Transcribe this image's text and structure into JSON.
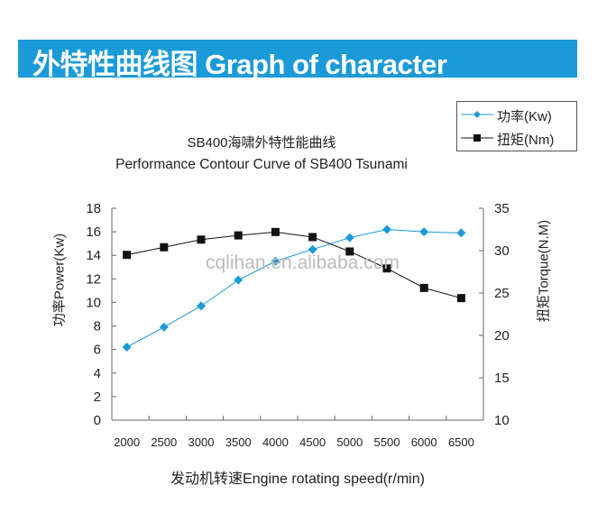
{
  "banner": {
    "title": "外特性曲线图 Graph of character",
    "color": "#1b9ad8"
  },
  "watermark": "cqlihan.en.alibaba.com",
  "chart_data": {
    "type": "line",
    "title": "SB400海啸外特性能曲线",
    "subtitle": "Performance Contour Curve of SB400 Tsunami",
    "xlabel": "发动机转速Engine rotating speed(r/min)",
    "ylabel": "功率Power(Kw)",
    "y2label": "扭矩Torque(N.M)",
    "categories": [
      "2000",
      "2500",
      "3000",
      "3500",
      "4000",
      "4500",
      "5000",
      "5500",
      "6000",
      "6500"
    ],
    "ylim": [
      0,
      18
    ],
    "yticks": [
      "0",
      "2",
      "4",
      "6",
      "8",
      "10",
      "12",
      "14",
      "16",
      "18"
    ],
    "y2lim": [
      10,
      35
    ],
    "y2ticks": [
      "10",
      "15",
      "20",
      "25",
      "30",
      "35"
    ],
    "legend_position": "top-right",
    "series": [
      {
        "name": "功率(Kw)",
        "axis": "left",
        "marker": "diamond",
        "color": "#1b9ad8",
        "values": [
          6.2,
          7.9,
          9.7,
          11.9,
          13.5,
          14.5,
          15.5,
          16.2,
          16.0,
          15.9
        ]
      },
      {
        "name": "扭矩(Nm)",
        "axis": "right",
        "marker": "square",
        "color": "#111111",
        "values": [
          29.5,
          30.4,
          31.3,
          31.8,
          32.2,
          31.6,
          29.9,
          27.9,
          25.6,
          24.4
        ]
      }
    ]
  }
}
